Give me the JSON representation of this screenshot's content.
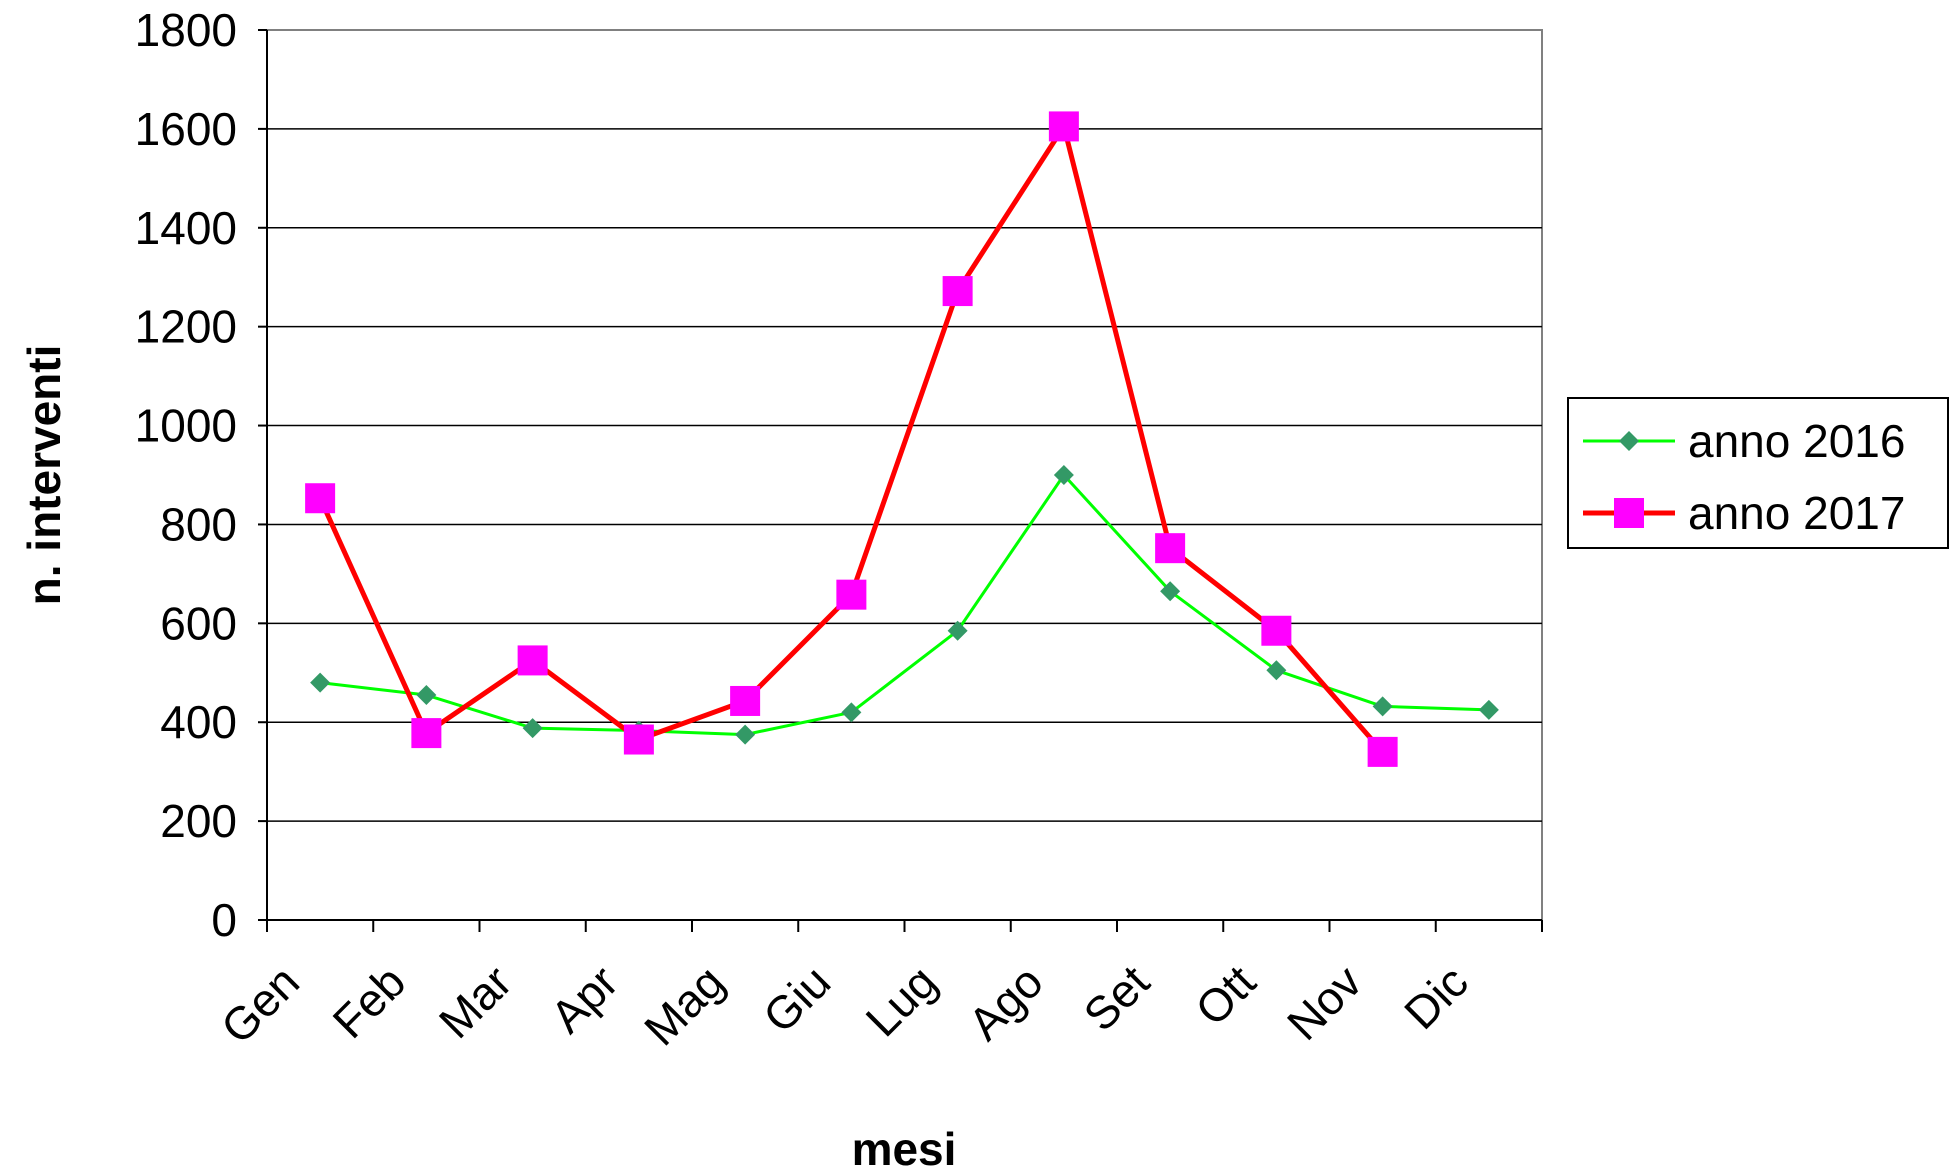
{
  "chart_data": {
    "type": "line",
    "title": "",
    "xlabel": "mesi",
    "ylabel": "n. interventi",
    "categories": [
      "Gen",
      "Feb",
      "Mar",
      "Apr",
      "Mag",
      "Giu",
      "Lug",
      "Ago",
      "Set",
      "Ott",
      "Nov",
      "Dic"
    ],
    "ylim": [
      0,
      1800
    ],
    "yticks": [
      "0",
      "200",
      "400",
      "600",
      "800",
      "1000",
      "1200",
      "1400",
      "1600",
      "1800"
    ],
    "grid": true,
    "legend_position": "right",
    "series": [
      {
        "name": "anno 2016",
        "color": "#00ff00",
        "marker": "diamond",
        "marker_color": "#339966",
        "values": [
          480,
          455,
          388,
          383,
          375,
          420,
          585,
          900,
          665,
          505,
          432,
          425
        ]
      },
      {
        "name": "anno 2017",
        "color": "#ff0000",
        "marker": "square",
        "marker_color": "#ff00ff",
        "values": [
          853,
          378,
          525,
          365,
          443,
          658,
          1272,
          1605,
          752,
          585,
          340,
          null
        ]
      }
    ]
  }
}
